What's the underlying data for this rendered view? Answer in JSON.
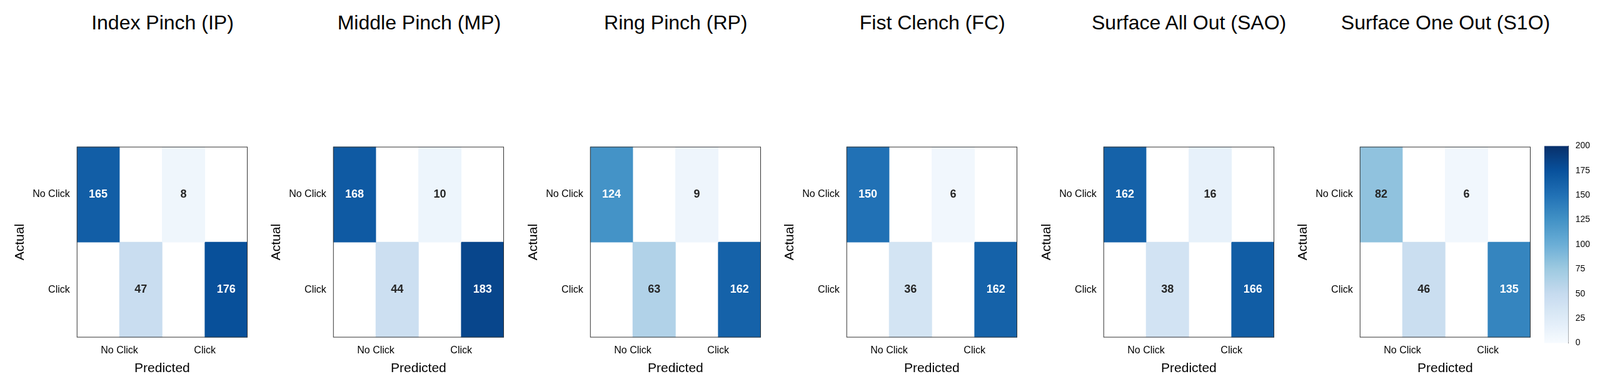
{
  "chart_data": [
    {
      "type": "heatmap",
      "title": "Index Pinch (IP)",
      "x_label": "Predicted",
      "y_label": "Actual",
      "x_categories": [
        "No Click",
        "Click"
      ],
      "y_categories": [
        "No Click",
        "Click"
      ],
      "cells": [
        [
          165,
          8
        ],
        [
          47,
          176
        ]
      ],
      "data_labels": true
    },
    {
      "type": "heatmap",
      "title": "Middle Pinch (MP)",
      "x_label": "Predicted",
      "y_label": "Actual",
      "x_categories": [
        "No Click",
        "Click"
      ],
      "y_categories": [
        "No Click",
        "Click"
      ],
      "cells": [
        [
          168,
          10
        ],
        [
          44,
          183
        ]
      ],
      "data_labels": true
    },
    {
      "type": "heatmap",
      "title": "Ring Pinch (RP)",
      "x_label": "Predicted",
      "y_label": "Actual",
      "x_categories": [
        "No Click",
        "Click"
      ],
      "y_categories": [
        "No Click",
        "Click"
      ],
      "cells": [
        [
          124,
          9
        ],
        [
          63,
          162
        ]
      ],
      "data_labels": true
    },
    {
      "type": "heatmap",
      "title": "Fist Clench (FC)",
      "x_label": "Predicted",
      "y_label": "Actual",
      "x_categories": [
        "No Click",
        "Click"
      ],
      "y_categories": [
        "No Click",
        "Click"
      ],
      "cells": [
        [
          150,
          6
        ],
        [
          36,
          162
        ]
      ],
      "data_labels": true
    },
    {
      "type": "heatmap",
      "title": "Surface All Out (SAO)",
      "x_label": "Predicted",
      "y_label": "Actual",
      "x_categories": [
        "No Click",
        "Click"
      ],
      "y_categories": [
        "No Click",
        "Click"
      ],
      "cells": [
        [
          162,
          16
        ],
        [
          38,
          166
        ]
      ],
      "data_labels": true
    },
    {
      "type": "heatmap",
      "title": "Surface One Out (S1O)",
      "x_label": "Predicted",
      "y_label": "Actual",
      "x_categories": [
        "No Click",
        "Click"
      ],
      "y_categories": [
        "No Click",
        "Click"
      ],
      "cells": [
        [
          82,
          6
        ],
        [
          46,
          135
        ]
      ],
      "data_labels": true
    }
  ],
  "colorbar": {
    "range": [
      0,
      200
    ],
    "ticks": [
      0,
      25,
      50,
      75,
      100,
      125,
      150,
      175,
      200
    ]
  }
}
